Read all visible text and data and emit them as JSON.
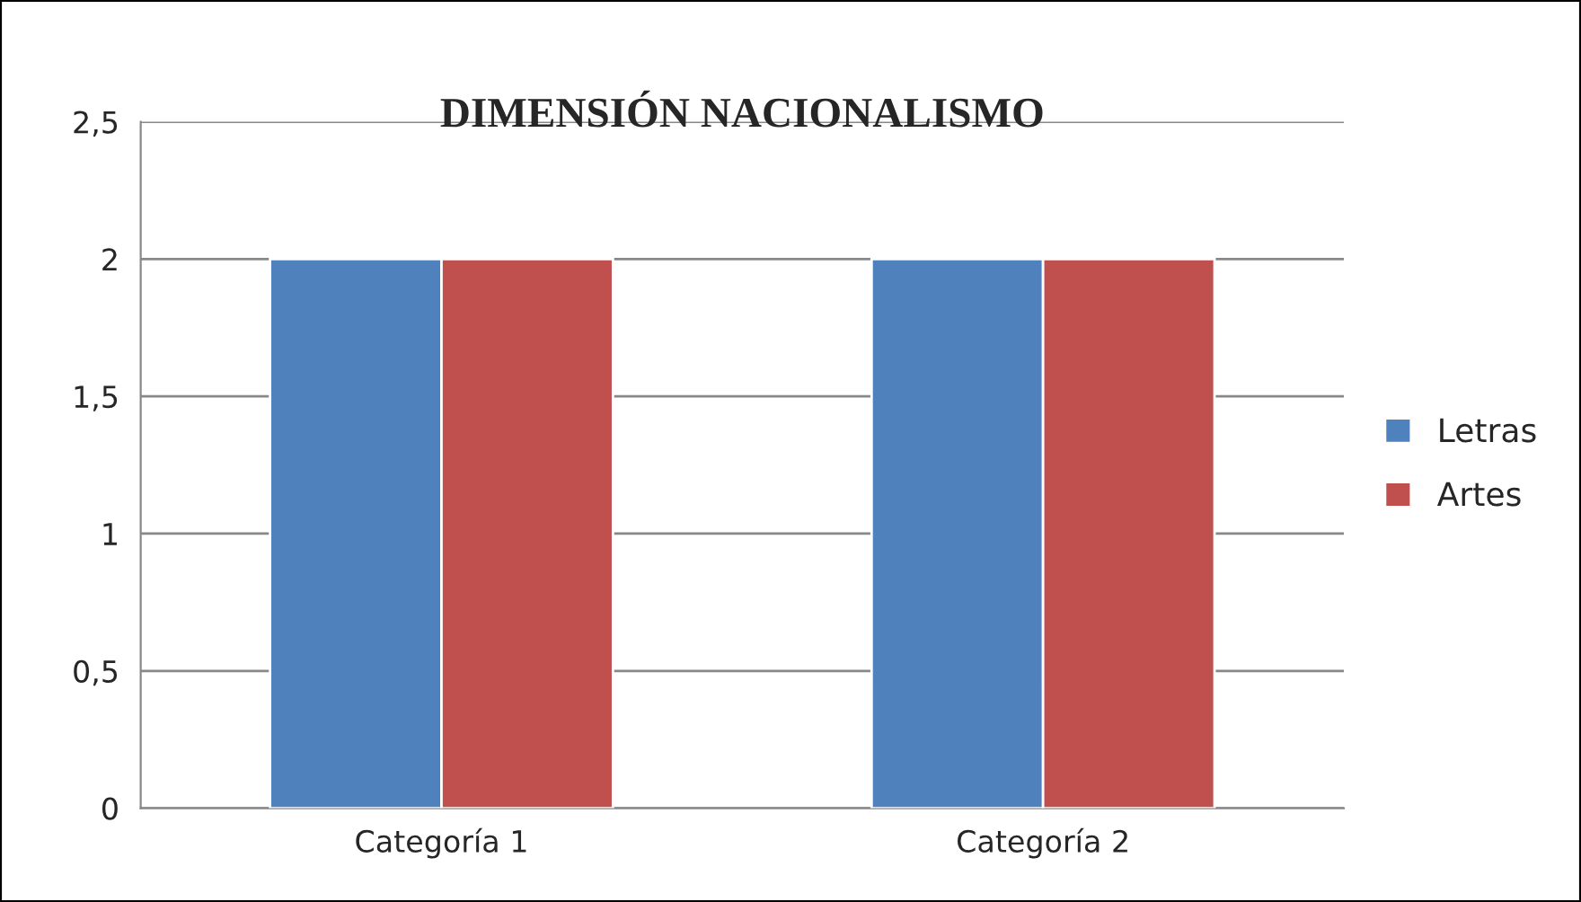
{
  "chart_data": {
    "type": "bar",
    "title": "DIMENSIÓN NACIONALISMO",
    "categories": [
      "Categoría 1",
      "Categoría 2"
    ],
    "series": [
      {
        "name": "Letras",
        "color": "#4f81bd",
        "values": [
          2,
          2
        ]
      },
      {
        "name": "Artes",
        "color": "#c0504d",
        "values": [
          2,
          2
        ]
      }
    ],
    "ylim": [
      0,
      2.5
    ],
    "yticks": [
      0,
      {
        "value": 0.5,
        "label": "0,5"
      },
      1,
      {
        "value": 1.5,
        "label": "1,5"
      },
      2,
      {
        "value": 2.5,
        "label": "2,5"
      }
    ],
    "grid": "y",
    "legend": "right"
  }
}
